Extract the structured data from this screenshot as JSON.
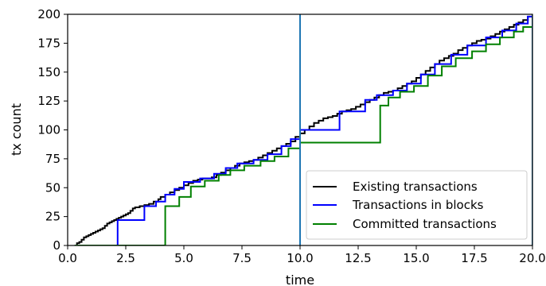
{
  "chart_data": {
    "type": "line",
    "title": "",
    "xlabel": "time",
    "ylabel": "tx count",
    "xlim": [
      0,
      20
    ],
    "ylim": [
      0,
      200
    ],
    "xticks": [
      "0.0",
      "2.5",
      "5.0",
      "7.5",
      "10.0",
      "12.5",
      "15.0",
      "17.5",
      "20.0"
    ],
    "yticks": [
      "0",
      "25",
      "50",
      "75",
      "100",
      "125",
      "150",
      "175",
      "200"
    ],
    "grid": false,
    "legend_position": "lower-right",
    "vertical_lines": [
      {
        "x": 10.0,
        "color": "#1f77b4"
      },
      {
        "x": 20.0,
        "color": "#1f77b4"
      }
    ],
    "series": [
      {
        "name": "Existing transactions",
        "color": "#000000",
        "step": true,
        "points": [
          [
            0.3,
            0
          ],
          [
            0.4,
            2
          ],
          [
            0.5,
            3
          ],
          [
            0.6,
            5
          ],
          [
            0.7,
            7
          ],
          [
            0.8,
            8
          ],
          [
            0.9,
            9
          ],
          [
            1.0,
            10
          ],
          [
            1.1,
            11
          ],
          [
            1.2,
            12
          ],
          [
            1.3,
            13
          ],
          [
            1.4,
            14
          ],
          [
            1.5,
            15
          ],
          [
            1.6,
            17
          ],
          [
            1.7,
            19
          ],
          [
            1.8,
            20
          ],
          [
            1.9,
            21
          ],
          [
            2.0,
            22
          ],
          [
            2.1,
            23
          ],
          [
            2.2,
            24
          ],
          [
            2.3,
            25
          ],
          [
            2.4,
            26
          ],
          [
            2.5,
            27
          ],
          [
            2.6,
            28
          ],
          [
            2.7,
            30
          ],
          [
            2.8,
            32
          ],
          [
            2.9,
            33
          ],
          [
            3.1,
            34
          ],
          [
            3.3,
            35
          ],
          [
            3.5,
            36
          ],
          [
            3.7,
            38
          ],
          [
            3.9,
            40
          ],
          [
            4.0,
            42
          ],
          [
            4.2,
            44
          ],
          [
            4.4,
            46
          ],
          [
            4.6,
            48
          ],
          [
            4.8,
            50
          ],
          [
            5.0,
            52
          ],
          [
            5.2,
            54
          ],
          [
            5.4,
            56
          ],
          [
            5.6,
            57
          ],
          [
            5.8,
            58
          ],
          [
            6.0,
            58
          ],
          [
            6.2,
            59
          ],
          [
            6.4,
            61
          ],
          [
            6.6,
            63
          ],
          [
            6.8,
            65
          ],
          [
            7.0,
            67
          ],
          [
            7.2,
            69
          ],
          [
            7.4,
            71
          ],
          [
            7.6,
            72
          ],
          [
            7.8,
            73
          ],
          [
            8.0,
            74
          ],
          [
            8.2,
            76
          ],
          [
            8.4,
            78
          ],
          [
            8.6,
            80
          ],
          [
            8.8,
            82
          ],
          [
            9.0,
            84
          ],
          [
            9.2,
            86
          ],
          [
            9.4,
            88
          ],
          [
            9.6,
            90
          ],
          [
            9.8,
            94
          ],
          [
            10.0,
            97
          ],
          [
            10.2,
            100
          ],
          [
            10.4,
            103
          ],
          [
            10.6,
            106
          ],
          [
            10.8,
            108
          ],
          [
            11.0,
            110
          ],
          [
            11.2,
            111
          ],
          [
            11.4,
            112
          ],
          [
            11.6,
            114
          ],
          [
            11.8,
            116
          ],
          [
            12.0,
            117
          ],
          [
            12.2,
            118
          ],
          [
            12.4,
            120
          ],
          [
            12.6,
            122
          ],
          [
            12.8,
            124
          ],
          [
            13.0,
            126
          ],
          [
            13.2,
            128
          ],
          [
            13.4,
            130
          ],
          [
            13.6,
            132
          ],
          [
            13.8,
            133
          ],
          [
            14.0,
            134
          ],
          [
            14.2,
            136
          ],
          [
            14.4,
            138
          ],
          [
            14.6,
            140
          ],
          [
            14.8,
            142
          ],
          [
            15.0,
            145
          ],
          [
            15.2,
            148
          ],
          [
            15.4,
            151
          ],
          [
            15.6,
            154
          ],
          [
            15.8,
            157
          ],
          [
            16.0,
            160
          ],
          [
            16.2,
            162
          ],
          [
            16.4,
            164
          ],
          [
            16.6,
            166
          ],
          [
            16.8,
            169
          ],
          [
            17.0,
            171
          ],
          [
            17.2,
            173
          ],
          [
            17.4,
            175
          ],
          [
            17.6,
            177
          ],
          [
            17.8,
            178
          ],
          [
            18.0,
            179
          ],
          [
            18.2,
            181
          ],
          [
            18.4,
            183
          ],
          [
            18.6,
            185
          ],
          [
            18.8,
            187
          ],
          [
            19.0,
            189
          ],
          [
            19.2,
            191
          ],
          [
            19.4,
            193
          ],
          [
            19.6,
            195
          ],
          [
            19.8,
            198
          ],
          [
            20.0,
            200
          ]
        ]
      },
      {
        "name": "Transactions in blocks",
        "color": "#0000ff",
        "step": true,
        "points": [
          [
            0.3,
            0
          ],
          [
            2.15,
            0
          ],
          [
            2.15,
            22
          ],
          [
            3.3,
            22
          ],
          [
            3.3,
            34
          ],
          [
            3.8,
            34
          ],
          [
            3.8,
            38
          ],
          [
            4.2,
            38
          ],
          [
            4.2,
            44
          ],
          [
            4.6,
            44
          ],
          [
            4.6,
            49
          ],
          [
            5.0,
            49
          ],
          [
            5.0,
            55
          ],
          [
            5.7,
            55
          ],
          [
            5.7,
            58
          ],
          [
            6.3,
            58
          ],
          [
            6.3,
            62
          ],
          [
            6.8,
            62
          ],
          [
            6.8,
            67
          ],
          [
            7.3,
            67
          ],
          [
            7.3,
            71
          ],
          [
            8.0,
            71
          ],
          [
            8.0,
            74
          ],
          [
            8.6,
            74
          ],
          [
            8.6,
            79
          ],
          [
            9.2,
            79
          ],
          [
            9.2,
            86
          ],
          [
            9.6,
            86
          ],
          [
            9.6,
            92
          ],
          [
            10.0,
            92
          ],
          [
            10.0,
            100
          ],
          [
            11.7,
            100
          ],
          [
            11.7,
            116
          ],
          [
            12.8,
            116
          ],
          [
            12.8,
            126
          ],
          [
            13.3,
            126
          ],
          [
            13.3,
            130
          ],
          [
            14.0,
            130
          ],
          [
            14.0,
            134
          ],
          [
            14.6,
            134
          ],
          [
            14.6,
            140
          ],
          [
            15.2,
            140
          ],
          [
            15.2,
            148
          ],
          [
            15.8,
            148
          ],
          [
            15.8,
            157
          ],
          [
            16.5,
            157
          ],
          [
            16.5,
            165
          ],
          [
            17.2,
            165
          ],
          [
            17.2,
            173
          ],
          [
            18.0,
            173
          ],
          [
            18.0,
            180
          ],
          [
            18.7,
            180
          ],
          [
            18.7,
            186
          ],
          [
            19.3,
            186
          ],
          [
            19.3,
            192
          ],
          [
            19.8,
            192
          ],
          [
            19.8,
            198
          ],
          [
            20.0,
            198
          ]
        ]
      },
      {
        "name": "Committed transactions",
        "color": "#008000",
        "step": true,
        "points": [
          [
            0.3,
            0
          ],
          [
            4.2,
            0
          ],
          [
            4.2,
            34
          ],
          [
            4.8,
            34
          ],
          [
            4.8,
            42
          ],
          [
            5.3,
            42
          ],
          [
            5.3,
            51
          ],
          [
            5.9,
            51
          ],
          [
            5.9,
            56
          ],
          [
            6.5,
            56
          ],
          [
            6.5,
            61
          ],
          [
            7.0,
            61
          ],
          [
            7.0,
            65
          ],
          [
            7.6,
            65
          ],
          [
            7.6,
            69
          ],
          [
            8.3,
            69
          ],
          [
            8.3,
            73
          ],
          [
            8.9,
            73
          ],
          [
            8.9,
            77
          ],
          [
            9.5,
            77
          ],
          [
            9.5,
            84
          ],
          [
            10.0,
            84
          ],
          [
            10.0,
            89
          ],
          [
            13.45,
            89
          ],
          [
            13.45,
            121
          ],
          [
            13.8,
            121
          ],
          [
            13.8,
            128
          ],
          [
            14.3,
            128
          ],
          [
            14.3,
            133
          ],
          [
            14.9,
            133
          ],
          [
            14.9,
            138
          ],
          [
            15.5,
            138
          ],
          [
            15.5,
            147
          ],
          [
            16.1,
            147
          ],
          [
            16.1,
            155
          ],
          [
            16.7,
            155
          ],
          [
            16.7,
            162
          ],
          [
            17.4,
            162
          ],
          [
            17.4,
            168
          ],
          [
            18.0,
            168
          ],
          [
            18.0,
            174
          ],
          [
            18.6,
            174
          ],
          [
            18.6,
            180
          ],
          [
            19.2,
            180
          ],
          [
            19.2,
            185
          ],
          [
            19.6,
            185
          ],
          [
            19.6,
            189
          ],
          [
            20.0,
            189
          ]
        ]
      }
    ]
  }
}
